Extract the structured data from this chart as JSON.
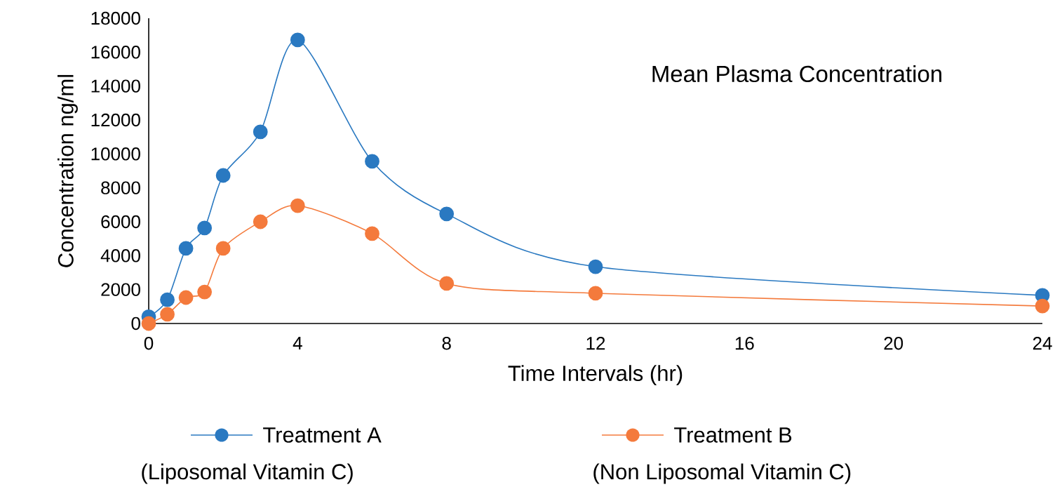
{
  "chart_data": {
    "type": "line",
    "title": "Mean Plasma Concentration",
    "xlabel": "Time Intervals (hr)",
    "ylabel": "Concentration ng/ml",
    "x": [
      0,
      0.5,
      1,
      1.5,
      2,
      3,
      4,
      6,
      8,
      12,
      24
    ],
    "series": [
      {
        "name": "Treatment A",
        "color": "#2a79c1",
        "values": [
          400,
          1400,
          4430,
          5630,
          8730,
          11300,
          16720,
          9560,
          6460,
          3350,
          1660
        ]
      },
      {
        "name": "Treatment B",
        "color": "#f47a3c",
        "values": [
          0,
          540,
          1530,
          1860,
          4430,
          6000,
          6950,
          5300,
          2360,
          1780,
          1030
        ]
      }
    ],
    "annotations": [
      "(Liposomal Vitamin C)",
      "(Non Liposomal Vitamin C)"
    ],
    "xlim": [
      0,
      24
    ],
    "xticks": [
      0,
      4,
      8,
      12,
      16,
      20,
      24
    ],
    "ylim": [
      0,
      18000
    ],
    "yticks": [
      0,
      2000,
      4000,
      6000,
      8000,
      10000,
      12000,
      14000,
      16000,
      18000
    ],
    "marker": "circle",
    "line_style": "solid",
    "legend": "bottom"
  }
}
